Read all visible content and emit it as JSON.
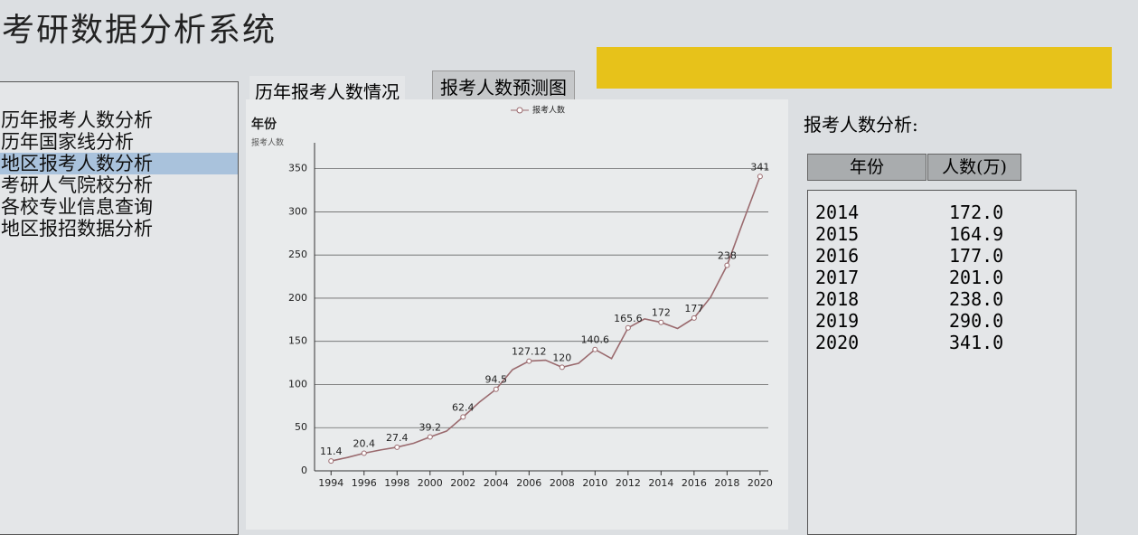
{
  "header": {
    "title": "考研数据分析系统"
  },
  "menu": {
    "items": [
      "历年报考人数分析",
      "历年国家线分析",
      "地区报考人数分析",
      "考研人气院校分析",
      "各校专业信息查询",
      "地区报招数据分析"
    ],
    "selected": 2
  },
  "tabs": [
    "历年报考人数情况",
    "报考人数预测图"
  ],
  "chart_data": {
    "type": "line",
    "title": "年份",
    "y_label": "报考人数",
    "x": [
      1994,
      1995,
      1996,
      1997,
      1998,
      1999,
      2000,
      2001,
      2002,
      2003,
      2004,
      2005,
      2006,
      2007,
      2008,
      2009,
      2010,
      2011,
      2012,
      2013,
      2014,
      2015,
      2016,
      2017,
      2018,
      2019,
      2020
    ],
    "series": [
      {
        "name": "报考人数",
        "color": "#9a6a6e",
        "values": [
          11.4,
          15.5,
          20.4,
          24.2,
          27.4,
          31.9,
          39.2,
          46,
          62.4,
          79.7,
          94.5,
          117.2,
          127.12,
          128.2,
          120,
          124.6,
          140.6,
          130,
          165.6,
          176,
          172,
          164.9,
          177,
          201,
          238,
          290,
          341
        ],
        "value_labels": [
          "11.4",
          null,
          "20.4",
          null,
          "27.4",
          null,
          "39.2",
          null,
          "62.4",
          null,
          "94.5",
          null,
          "127.12",
          null,
          "120",
          null,
          "140.6",
          null,
          "165.6",
          null,
          "172",
          null,
          "177",
          null,
          "238",
          null,
          "341"
        ]
      }
    ],
    "xlim": [
      1993,
      2020.5
    ],
    "xticks": [
      1994,
      1996,
      1998,
      2000,
      2002,
      2004,
      2006,
      2008,
      2010,
      2012,
      2014,
      2016,
      2018,
      2020
    ],
    "ylim": [
      0,
      380
    ],
    "yticks": [
      0,
      50,
      100,
      150,
      200,
      250,
      300,
      350
    ],
    "grid": true,
    "legend": "top"
  },
  "analysis": {
    "title": "报考人数分析:",
    "columns": [
      "年份",
      "人数(万)"
    ],
    "rows": [
      [
        "2014",
        "172.0"
      ],
      [
        "2015",
        "164.9"
      ],
      [
        "2016",
        "177.0"
      ],
      [
        "2017",
        "201.0"
      ],
      [
        "2018",
        "238.0"
      ],
      [
        "2019",
        "290.0"
      ],
      [
        "2020",
        "341.0"
      ]
    ]
  }
}
